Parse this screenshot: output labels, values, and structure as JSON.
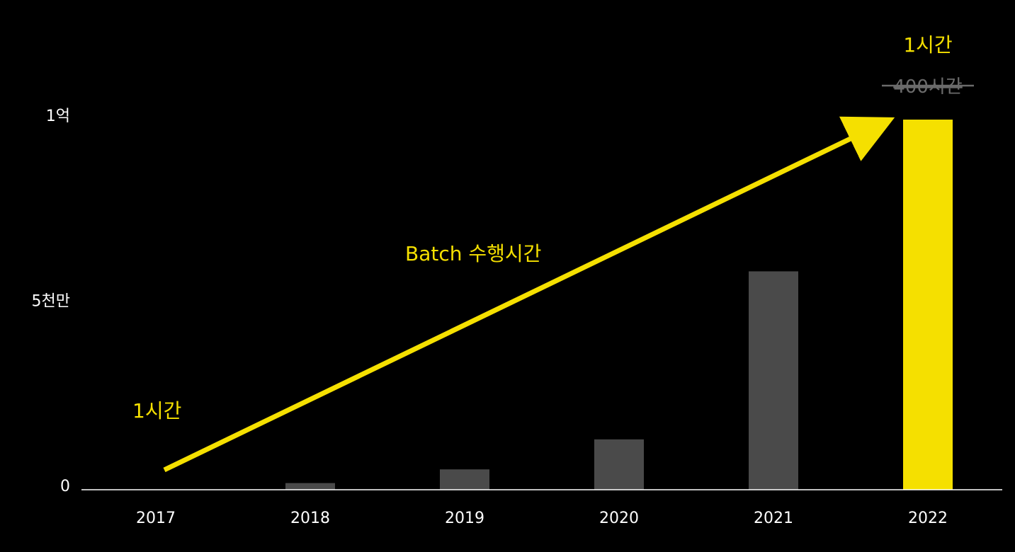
{
  "chart_data": {
    "type": "bar",
    "categories": [
      "2017",
      "2018",
      "2019",
      "2020",
      "2021",
      "2022"
    ],
    "values": [
      100000,
      1800000,
      5500000,
      13600000,
      59000000,
      100000000
    ],
    "ylim": [
      0,
      100000000
    ],
    "y_ticks": [
      {
        "value": 0,
        "label": "0"
      },
      {
        "value": 50000000,
        "label": "5천만"
      },
      {
        "value": 100000000,
        "label": "1억"
      }
    ],
    "grid": false,
    "highlight_category": "2022",
    "colors": {
      "background": "#000000",
      "bar": "#4a4a4a",
      "highlight_bar": "#f5e000",
      "accent": "#f5e000",
      "axis": "#ffffff",
      "muted_text": "#6b6b6b"
    },
    "annotations": {
      "start_label": "1시간",
      "arrow_label": "Batch 수행시간",
      "end_label": "1시간",
      "end_old_label": "400시간"
    }
  }
}
